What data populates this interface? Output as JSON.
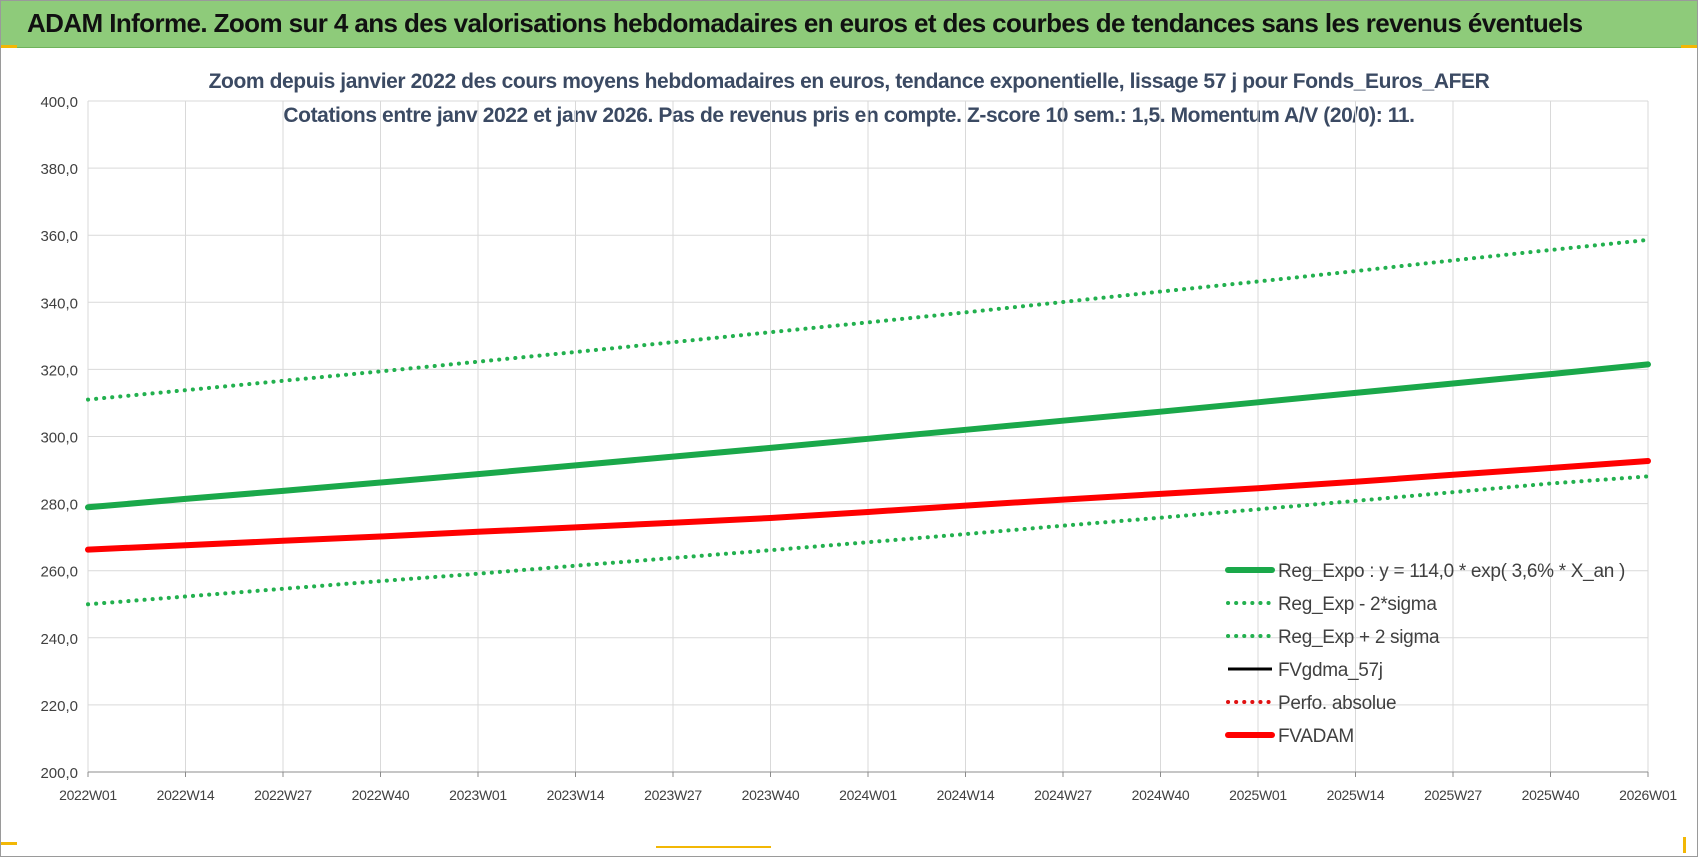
{
  "banner": {
    "title": "ADAM Informe. Zoom sur 4 ans des valorisations hebdomadaires en euros et des courbes de tendances sans les revenus éventuels"
  },
  "colors": {
    "banner_bg": "#8ecb7a",
    "trend_green": "#1aa84a",
    "band_green": "#22b04e",
    "fvgdma_black": "#000000",
    "perfo_red": "#e01010",
    "fvadam_red": "#ff0000",
    "grid": "#d9d9d9",
    "axis_text": "#404040",
    "subtitle_text": "#3b4a63"
  },
  "chart_data": {
    "type": "line",
    "title_lines": [
      "Zoom depuis janvier 2022 des cours moyens hebdomadaires en euros, tendance exponentielle, lissage 57 j pour Fonds_Euros_AFER",
      "Cotations entre janv 2022 et janv 2026. Pas de revenus pris en compte. Z-score 10 sem.: 1,5. Momentum A/V (20/0): 11."
    ],
    "xlabel": "",
    "ylabel": "",
    "ylim": [
      200,
      400
    ],
    "y_ticks": [
      "200,0",
      "220,0",
      "240,0",
      "260,0",
      "280,0",
      "300,0",
      "320,0",
      "340,0",
      "360,0",
      "380,0",
      "400,0"
    ],
    "x_ticks": [
      "2022W01",
      "2022W14",
      "2022W27",
      "2022W40",
      "2023W01",
      "2023W14",
      "2023W27",
      "2023W40",
      "2024W01",
      "2024W14",
      "2024W27",
      "2024W40",
      "2025W01",
      "2025W14",
      "2025W27",
      "2025W40",
      "2026W01"
    ],
    "grid": true,
    "legend_position": "bottom-right",
    "series": [
      {
        "name": "Reg_Expo : y = 114,0 * exp( 3,6% *  X_an )",
        "style": "solid-thick",
        "color": "#1aa84a",
        "values": [
          278.9,
          281.4,
          283.8,
          286.3,
          288.8,
          291.4,
          294.0,
          296.6,
          299.3,
          302.0,
          304.7,
          307.4,
          310.2,
          313.0,
          315.8,
          318.6,
          321.5
        ]
      },
      {
        "name": "Reg_Exp - 2*sigma",
        "style": "dotted",
        "color": "#22b04e",
        "values": [
          250.0,
          252.3,
          254.6,
          256.9,
          259.1,
          261.5,
          263.8,
          266.1,
          268.5,
          270.9,
          273.4,
          275.8,
          278.3,
          280.8,
          283.4,
          286.0,
          288.1
        ]
      },
      {
        "name": "Reg_Exp + 2 sigma",
        "style": "dotted",
        "color": "#22b04e",
        "values": [
          311.0,
          313.8,
          316.6,
          319.4,
          322.3,
          325.2,
          328.1,
          331.1,
          334.0,
          337.0,
          340.1,
          343.2,
          346.2,
          349.3,
          352.5,
          355.6,
          358.6
        ]
      },
      {
        "name": "FVgdma_57j",
        "style": "solid",
        "color": "#000000",
        "values": []
      },
      {
        "name": "Perfo. absolue",
        "style": "dotted",
        "color": "#e01010",
        "values": []
      },
      {
        "name": "FVADAM",
        "style": "solid-thick",
        "color": "#ff0000",
        "values": [
          266.3,
          267.6,
          268.9,
          270.2,
          271.6,
          272.9,
          274.3,
          275.7,
          277.5,
          279.4,
          281.2,
          282.9,
          284.6,
          286.5,
          288.6,
          290.6,
          292.7
        ]
      }
    ]
  }
}
